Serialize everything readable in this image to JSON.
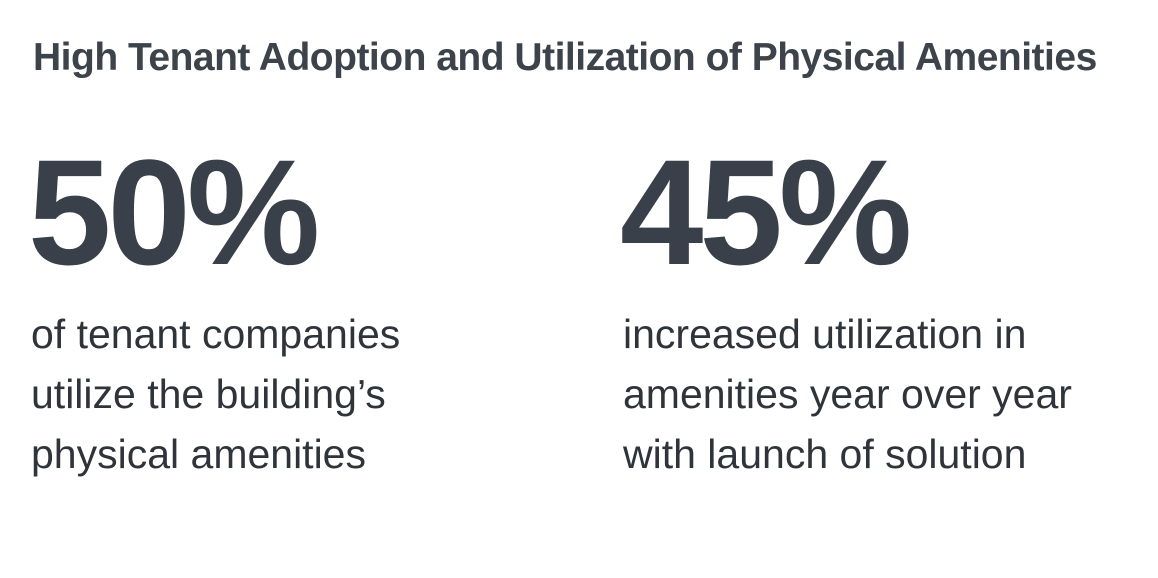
{
  "header": {
    "title": "High Tenant Adoption and Utilization of Physical Amenities"
  },
  "stats": [
    {
      "value": "50%",
      "description": "of tenant companies utilize the building’s physical amenities"
    },
    {
      "value": "45%",
      "description": "increased utilization in amenities year over year with launch of solution"
    }
  ],
  "colors": {
    "text": "#3a4049",
    "background": "#ffffff"
  }
}
